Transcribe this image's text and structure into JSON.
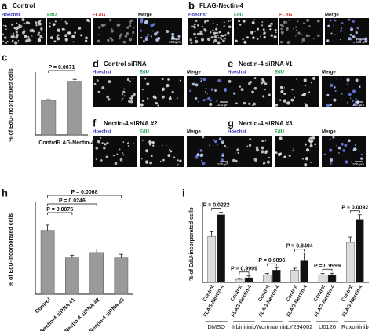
{
  "panels": [
    {
      "label": "a",
      "title": "Control",
      "channels": [
        "Hoechst",
        "EdU",
        "FLAG",
        "Merge"
      ],
      "channel_colors": [
        "#3a3ab8",
        "#1f9a4a",
        "#d0302a",
        "#111111"
      ],
      "scale_bar": "100 μm"
    },
    {
      "label": "b",
      "title": "FLAG-Nectin-4",
      "channels": [
        "Hoechst",
        "EdU",
        "FLAG",
        "Merge"
      ],
      "channel_colors": [
        "#3a3ab8",
        "#1f9a4a",
        "#d0302a",
        "#111111"
      ],
      "scale_bar": "100 μm"
    },
    {
      "label": "d",
      "title": "Control siRNA",
      "channels": [
        "Hoechst",
        "EdU",
        "Merge"
      ],
      "channel_colors": [
        "#3a3ab8",
        "#1f9a4a",
        "#111111"
      ],
      "scale_bar": "100 μm"
    },
    {
      "label": "e",
      "title": "Nectin-4 siRNA #1",
      "channels": [
        "Hoechst",
        "EdU",
        "Merge"
      ],
      "channel_colors": [
        "#3a3ab8",
        "#1f9a4a",
        "#111111"
      ],
      "scale_bar": "100 μm"
    },
    {
      "label": "f",
      "title": "Nectin-4 siRNA #2",
      "channels": [
        "Hoechst",
        "EdU",
        "Merge"
      ],
      "channel_colors": [
        "#3a3ab8",
        "#1f9a4a",
        "#111111"
      ],
      "scale_bar": "100 μm"
    },
    {
      "label": "g",
      "title": "Nectin-4 siRNA #3",
      "channels": [
        "Hoechst",
        "EdU",
        "Merge"
      ],
      "channel_colors": [
        "#3a3ab8",
        "#1f9a4a",
        "#111111"
      ],
      "scale_bar": "100 μm"
    }
  ],
  "chart_data": [
    {
      "type": "bar",
      "panel_label": "c",
      "y_label": "% of EdU-incorporated cells",
      "categories": [
        "Control",
        "FLAG-Nectin-4"
      ],
      "values": [
        14.5,
        22.5
      ],
      "errors": [
        0.3,
        0.8
      ],
      "color": "#9a9a9a",
      "ylim": [
        0,
        25
      ],
      "annotations": [
        "P = 0.0071"
      ]
    },
    {
      "type": "bar",
      "panel_label": "h",
      "y_label": "% of EdU-incorporated cells",
      "categories": [
        "Control",
        "Nectin-4 siRNA #1",
        "Nectin-4 siRNA #2",
        "Nectin-4 siRNA #3"
      ],
      "values": [
        72,
        41,
        47,
        41
      ],
      "errors": [
        6,
        3,
        4,
        4
      ],
      "color": "#9a9a9a",
      "ylim": [
        0,
        100
      ],
      "annotations": [
        "P = 0.0068",
        "P = 0.0246",
        "P = 0.0076"
      ]
    },
    {
      "type": "grouped-bar",
      "panel_label": "i",
      "y_label": "% of EdU-incorporated cells",
      "categories": [
        "DMSO",
        "Irbinitinib",
        "Wortmannin",
        "LY294002",
        "U0126",
        "Ruxolitinib"
      ],
      "series": [
        {
          "name": "Control",
          "color": "#dcdcdc",
          "values": [
            15,
            1,
            2.5,
            4,
            2.5,
            13
          ],
          "errors": [
            1.5,
            0.3,
            0.4,
            0.6,
            0.4,
            1.8
          ]
        },
        {
          "name": "FLAG-Nectin-4",
          "color": "#111111",
          "values": [
            22,
            1.5,
            4,
            7,
            2.5,
            20.5
          ],
          "errors": [
            0.8,
            0.6,
            0.8,
            2.5,
            0.5,
            1.5
          ]
        }
      ],
      "ylim": [
        0,
        25
      ],
      "annotations": [
        "P = 0.0222",
        "P = 0.9999",
        "P = 0.9896",
        "P = 0.8494",
        "P = 0.9999",
        "P = 0.0092"
      ]
    }
  ]
}
